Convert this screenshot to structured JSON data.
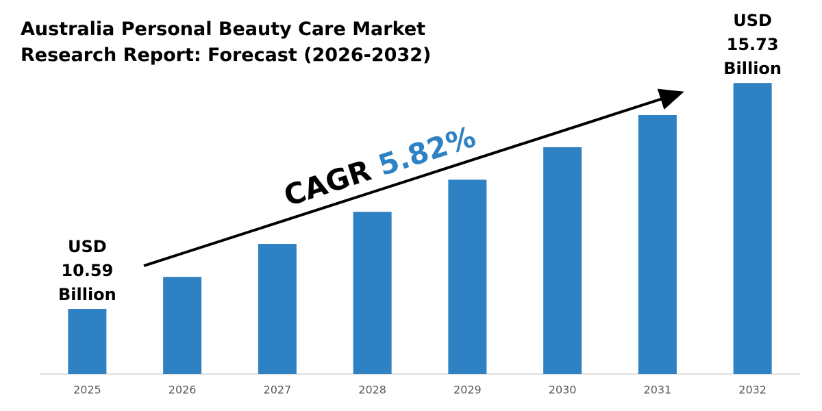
{
  "chart_data": {
    "type": "bar",
    "title": "Australia Personal Beauty Care Market Research Report: Forecast (2026-2032)",
    "categories": [
      "2025",
      "2026",
      "2027",
      "2028",
      "2029",
      "2030",
      "2031",
      "2032"
    ],
    "values": [
      10.59,
      11.32,
      12.07,
      12.8,
      13.53,
      14.27,
      15.0,
      15.73
    ],
    "value_labels": [
      "USD 10.59 Billion",
      null,
      null,
      null,
      null,
      null,
      null,
      "USD 15.73 Billion"
    ],
    "color": "#2e82c4",
    "ylim": [
      9.11,
      16.2
    ],
    "cagr_text": "CAGR",
    "cagr": {
      "value": 5.82,
      "label": "5.82%"
    },
    "cagr_color": "#2e82c4"
  }
}
